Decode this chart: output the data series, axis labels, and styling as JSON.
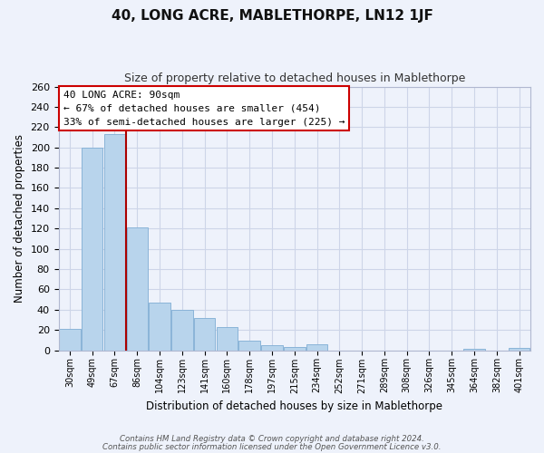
{
  "title": "40, LONG ACRE, MABLETHORPE, LN12 1JF",
  "subtitle": "Size of property relative to detached houses in Mablethorpe",
  "xlabel": "Distribution of detached houses by size in Mablethorpe",
  "ylabel": "Number of detached properties",
  "categories": [
    "30sqm",
    "49sqm",
    "67sqm",
    "86sqm",
    "104sqm",
    "123sqm",
    "141sqm",
    "160sqm",
    "178sqm",
    "197sqm",
    "215sqm",
    "234sqm",
    "252sqm",
    "271sqm",
    "289sqm",
    "308sqm",
    "326sqm",
    "345sqm",
    "364sqm",
    "382sqm",
    "401sqm"
  ],
  "values": [
    21,
    200,
    213,
    121,
    47,
    40,
    32,
    23,
    9,
    5,
    3,
    6,
    0,
    0,
    0,
    0,
    0,
    0,
    1,
    0,
    2
  ],
  "bar_color": "#b8d4ec",
  "bar_edge_color": "#8ab4d8",
  "vline_color": "#aa0000",
  "annotation_title": "40 LONG ACRE: 90sqm",
  "annotation_line1": "← 67% of detached houses are smaller (454)",
  "annotation_line2": "33% of semi-detached houses are larger (225) →",
  "annotation_box_color": "#ffffff",
  "annotation_box_edge": "#cc0000",
  "ylim": [
    0,
    260
  ],
  "yticks": [
    0,
    20,
    40,
    60,
    80,
    100,
    120,
    140,
    160,
    180,
    200,
    220,
    240,
    260
  ],
  "footer1": "Contains HM Land Registry data © Crown copyright and database right 2024.",
  "footer2": "Contains public sector information licensed under the Open Government Licence v3.0.",
  "bg_color": "#eef2fb",
  "grid_color": "#cdd5e8"
}
